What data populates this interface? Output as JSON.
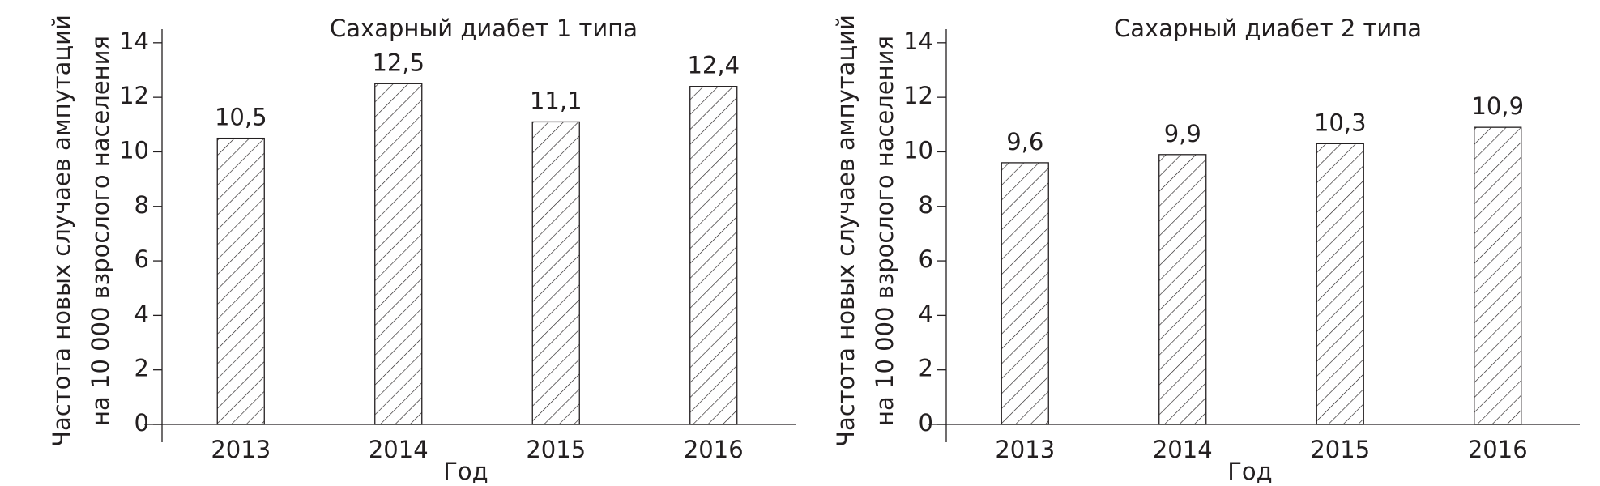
{
  "chart_data": [
    {
      "type": "bar",
      "title": "Сахарный диабет 1 типа",
      "ylabel": [
        "Частота новых случаев ампутаций",
        "на 10 000 взрослого населения"
      ],
      "xlabel": "Год",
      "categories": [
        "2013",
        "2014",
        "2015",
        "2016"
      ],
      "values": [
        10.5,
        12.5,
        11.1,
        12.4
      ],
      "value_labels": [
        "10,5",
        "12,5",
        "11,1",
        "12,4"
      ],
      "color": "#231f20",
      "ylim": [
        0,
        14.5
      ],
      "yticks": [
        0,
        2,
        4,
        6,
        8,
        10,
        12,
        14
      ],
      "grid": false
    },
    {
      "type": "bar",
      "title": "Сахарный диабет 2 типа",
      "ylabel": [
        "Частота новых случаев ампутаций",
        "на 10 000 взрослого населения"
      ],
      "xlabel": "Год",
      "categories": [
        "2013",
        "2014",
        "2015",
        "2016"
      ],
      "values": [
        9.6,
        9.9,
        10.3,
        10.9
      ],
      "value_labels": [
        "9,6",
        "9,9",
        "10,3",
        "10,9"
      ],
      "color": "#231f20",
      "ylim": [
        0,
        14.5
      ],
      "yticks": [
        0,
        2,
        4,
        6,
        8,
        10,
        12,
        14
      ],
      "grid": false
    }
  ]
}
